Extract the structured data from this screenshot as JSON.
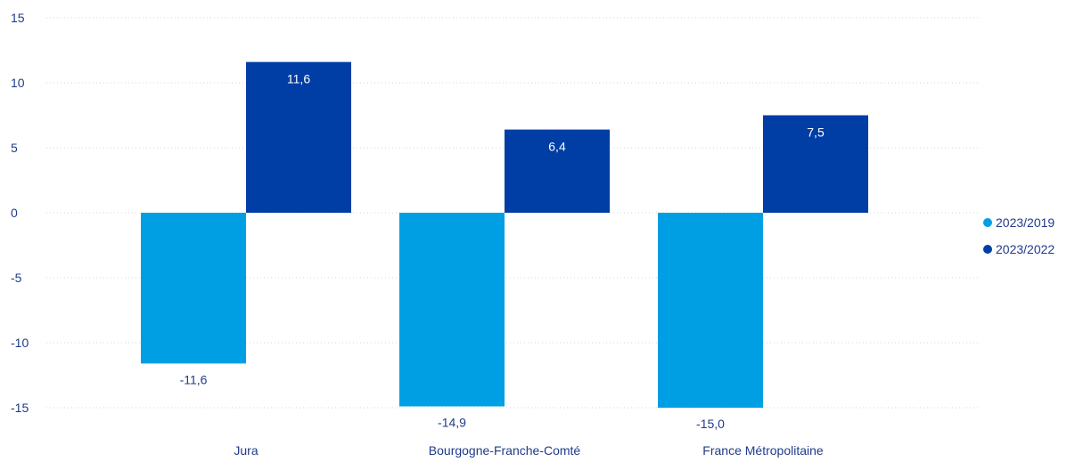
{
  "chart_data": {
    "type": "bar",
    "categories": [
      "Jura",
      "Bourgogne-Franche-Comté",
      "France Métropolitaine"
    ],
    "series": [
      {
        "name": "2023/2019",
        "values": [
          -11.6,
          -14.9,
          -15.0
        ],
        "labels": [
          "-11,6",
          "-14,9",
          "-15,0"
        ],
        "color": "#009FE3"
      },
      {
        "name": "2023/2022",
        "values": [
          11.6,
          6.4,
          7.5
        ],
        "labels": [
          "11,6",
          "6,4",
          "7,5"
        ],
        "color": "#003DA5"
      }
    ],
    "yticks": [
      15,
      10,
      5,
      0,
      -5,
      -10,
      -15
    ],
    "ytick_labels": [
      "15",
      "10",
      "5",
      "0",
      "-5",
      "-10",
      "-15"
    ],
    "ylim": [
      -15,
      15
    ],
    "grid": true,
    "legend_position": "right",
    "label_color": "#1f3b8c",
    "title": "",
    "xlabel": "",
    "ylabel": ""
  }
}
